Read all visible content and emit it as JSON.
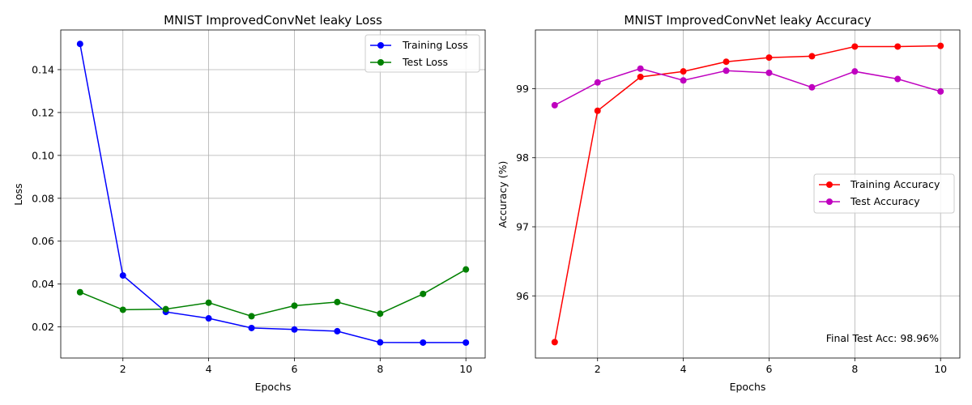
{
  "chart_data": [
    {
      "type": "line",
      "title": "MNIST ImprovedConvNet leaky Loss",
      "xlabel": "Epochs",
      "ylabel": "Loss",
      "x": [
        1,
        2,
        3,
        4,
        5,
        6,
        7,
        8,
        9,
        10
      ],
      "xlim": [
        0.55,
        10.45
      ],
      "ylim": [
        0.0055,
        0.1585
      ],
      "xticks": [
        2,
        4,
        6,
        8,
        10
      ],
      "yticks": [
        0.02,
        0.04,
        0.06,
        0.08,
        0.1,
        0.12,
        0.14
      ],
      "ytick_labels": [
        "0.02",
        "0.04",
        "0.06",
        "0.08",
        "0.10",
        "0.12",
        "0.14"
      ],
      "grid": true,
      "legend": "top-right",
      "series": [
        {
          "name": "Training Loss",
          "color": "#0000ff",
          "values": [
            0.152,
            0.044,
            0.027,
            0.024,
            0.0195,
            0.0188,
            0.018,
            0.0128,
            0.0127,
            0.0127
          ]
        },
        {
          "name": "Test Loss",
          "color": "#008000",
          "values": [
            0.0362,
            0.028,
            0.0283,
            0.0313,
            0.025,
            0.0299,
            0.0316,
            0.0262,
            0.0354,
            0.0468
          ]
        }
      ]
    },
    {
      "type": "line",
      "title": "MNIST ImprovedConvNet leaky Accuracy",
      "xlabel": "Epochs",
      "ylabel": "Accuracy (%)",
      "x": [
        1,
        2,
        3,
        4,
        5,
        6,
        7,
        8,
        9,
        10
      ],
      "xlim": [
        0.55,
        10.45
      ],
      "ylim": [
        95.1,
        99.85
      ],
      "xticks": [
        2,
        4,
        6,
        8,
        10
      ],
      "yticks": [
        96,
        97,
        98,
        99
      ],
      "ytick_labels": [
        "96",
        "97",
        "98",
        "99"
      ],
      "grid": true,
      "legend": "center-right",
      "annotation": "Final Test Acc: 98.96%",
      "series": [
        {
          "name": "Training Accuracy",
          "color": "#ff0000",
          "values": [
            95.33,
            98.68,
            99.17,
            99.25,
            99.39,
            99.45,
            99.47,
            99.61,
            99.61,
            99.62
          ]
        },
        {
          "name": "Test Accuracy",
          "color": "#bf00bf",
          "values": [
            98.76,
            99.09,
            99.29,
            99.12,
            99.26,
            99.23,
            99.02,
            99.25,
            99.14,
            98.96
          ]
        }
      ]
    }
  ]
}
